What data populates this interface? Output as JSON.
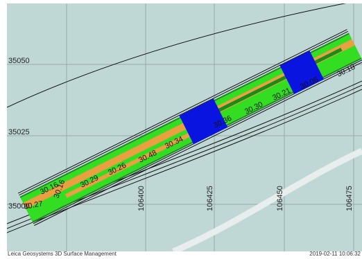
{
  "map": {
    "background_color": "#bfd8d6",
    "grid_color": "#9aa8a8",
    "road_colors": {
      "green": "#33dd22",
      "orange": "#e8a040",
      "blue": "#0a14e0",
      "dark_green": "#1a8a1a"
    },
    "y_labels": [
      "35050",
      "35025",
      "35000"
    ],
    "x_labels": [
      "106400",
      "106425",
      "106450",
      "106475"
    ],
    "elevation_labels": [
      "30.16",
      "30.29",
      "30.26",
      "30.48",
      "30.34",
      "30.36",
      "30.30",
      "30.21",
      "30.18",
      "30.06",
      "30.27",
      "30.16"
    ]
  },
  "footer": {
    "left": "Leica Geosystems 3D Surface Management",
    "right": "2019-02-11 10:06:32"
  }
}
